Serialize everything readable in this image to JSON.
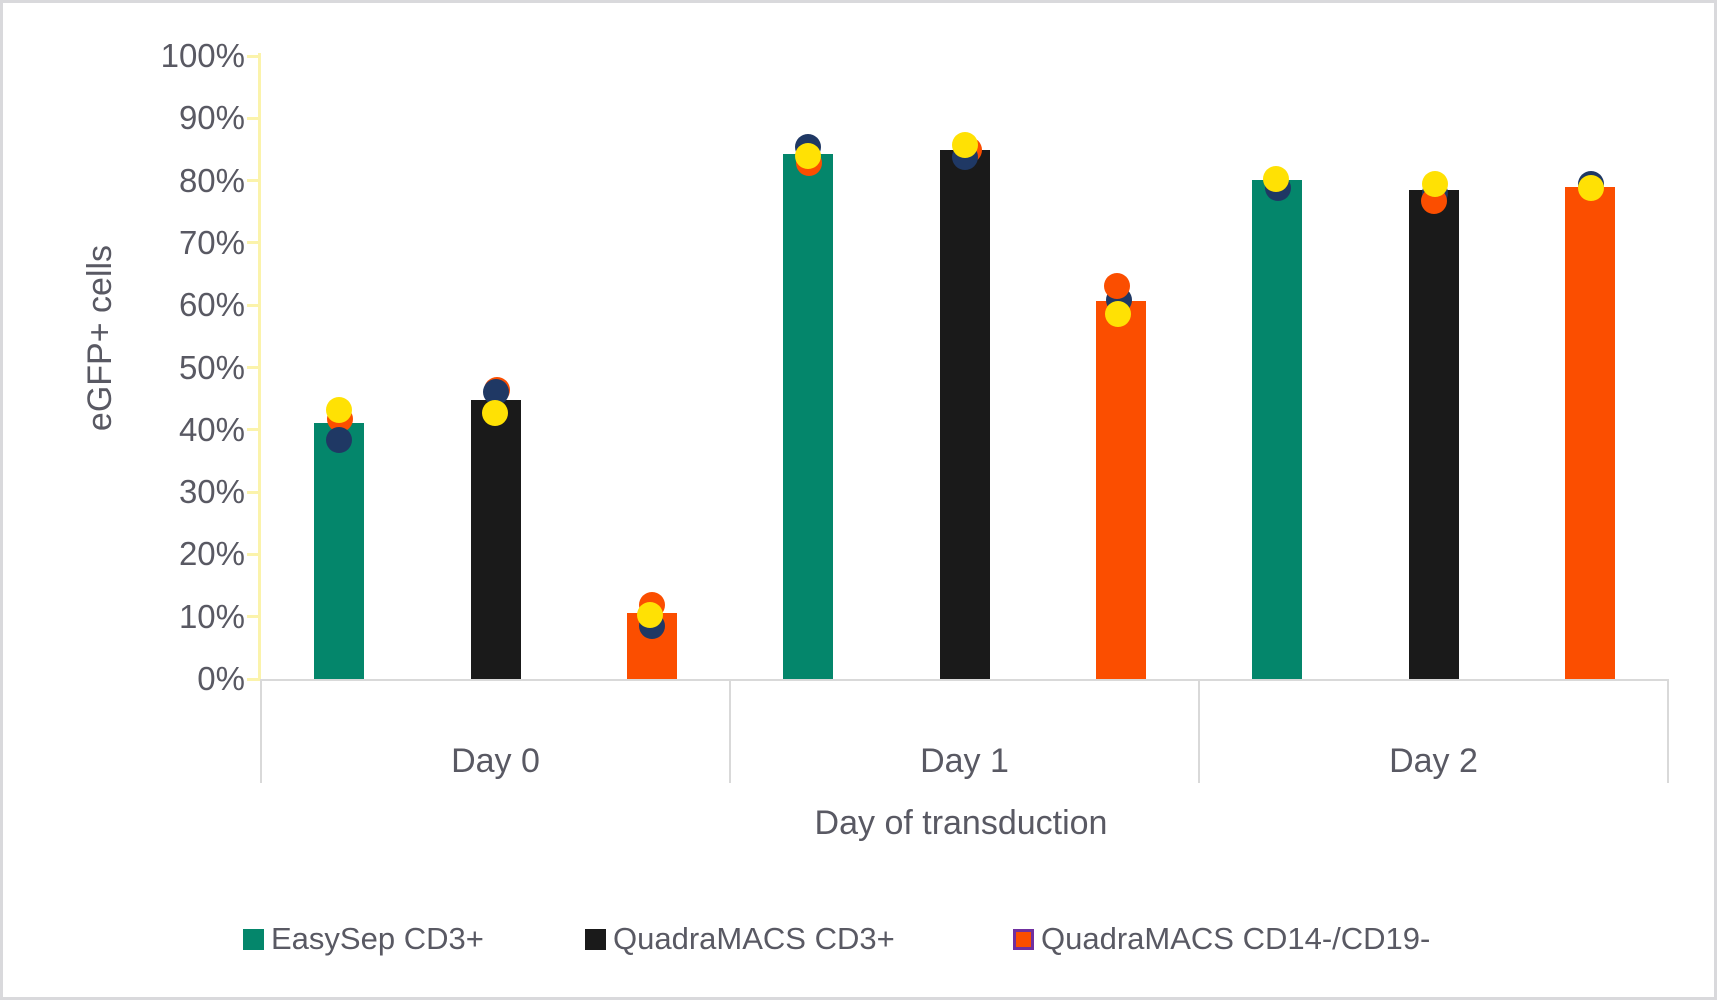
{
  "frame": {
    "border_color": "#D9D9DC",
    "background": "#FFFFFF",
    "text_color": "#595963"
  },
  "chart_data": {
    "type": "bar",
    "title": "",
    "xlabel": "Day of transduction",
    "ylabel": "eGFP+ cells",
    "ylim": [
      0,
      100
    ],
    "y_tick_step": 10,
    "y_tick_labels": [
      "0%",
      "10%",
      "20%",
      "30%",
      "40%",
      "50%",
      "60%",
      "70%",
      "80%",
      "90%",
      "100%"
    ],
    "categories": [
      "Day 0",
      "Day 1",
      "Day 2"
    ],
    "series": [
      {
        "name": "EasySep CD3+",
        "color": "#04866B",
        "values": [
          41.1,
          84.3,
          80.1
        ]
      },
      {
        "name": "QuadraMACS CD3+",
        "color": "#1A1A1A",
        "values": [
          44.8,
          84.9,
          78.5
        ]
      },
      {
        "name": "QuadraMACS CD14-/CD19-",
        "color": "#FB4E00",
        "swatch_border": "#7030A0",
        "values": [
          10.6,
          60.7,
          79.0
        ]
      }
    ],
    "replicate_dots": {
      "note": "individual replicate points overlaid on bars; format [color, value_pct, x_offset_px], draw order bottom-to-top",
      "colors": {
        "navy": "#1F3864",
        "orange": "#FB4E00",
        "yellow": "#FFE104"
      },
      "by_category": [
        [
          [
            [
              "orange",
              41.7,
              1
            ],
            [
              "navy",
              38.4,
              0
            ],
            [
              "yellow",
              43.2,
              0
            ]
          ],
          [
            [
              "orange",
              46.4,
              1
            ],
            [
              "navy",
              46.0,
              0
            ],
            [
              "yellow",
              42.7,
              -1
            ]
          ],
          [
            [
              "navy",
              8.5,
              0
            ],
            [
              "orange",
              11.9,
              0
            ],
            [
              "yellow",
              10.3,
              -2
            ]
          ]
        ],
        [
          [
            [
              "navy",
              85.4,
              0
            ],
            [
              "orange",
              82.9,
              1
            ],
            [
              "yellow",
              83.9,
              0
            ]
          ],
          [
            [
              "orange",
              84.9,
              4
            ],
            [
              "navy",
              83.8,
              0
            ],
            [
              "yellow",
              85.7,
              0
            ]
          ],
          [
            [
              "navy",
              60.8,
              -2
            ],
            [
              "orange",
              63.1,
              -4
            ],
            [
              "yellow",
              58.6,
              -3
            ]
          ]
        ],
        [
          [
            [
              "navy",
              78.8,
              1
            ],
            [
              "yellow",
              80.3,
              -1
            ]
          ],
          [
            [
              "navy",
              78.0,
              1
            ],
            [
              "orange",
              76.7,
              0
            ],
            [
              "yellow",
              79.5,
              1
            ]
          ],
          [
            [
              "navy",
              79.4,
              1
            ],
            [
              "yellow",
              78.8,
              1
            ]
          ]
        ]
      ]
    },
    "axis_colors": {
      "y_axis_line": "#FBF3AB",
      "category_line": "#D9D9D9"
    },
    "grid": "off",
    "legend_position": "bottom"
  }
}
